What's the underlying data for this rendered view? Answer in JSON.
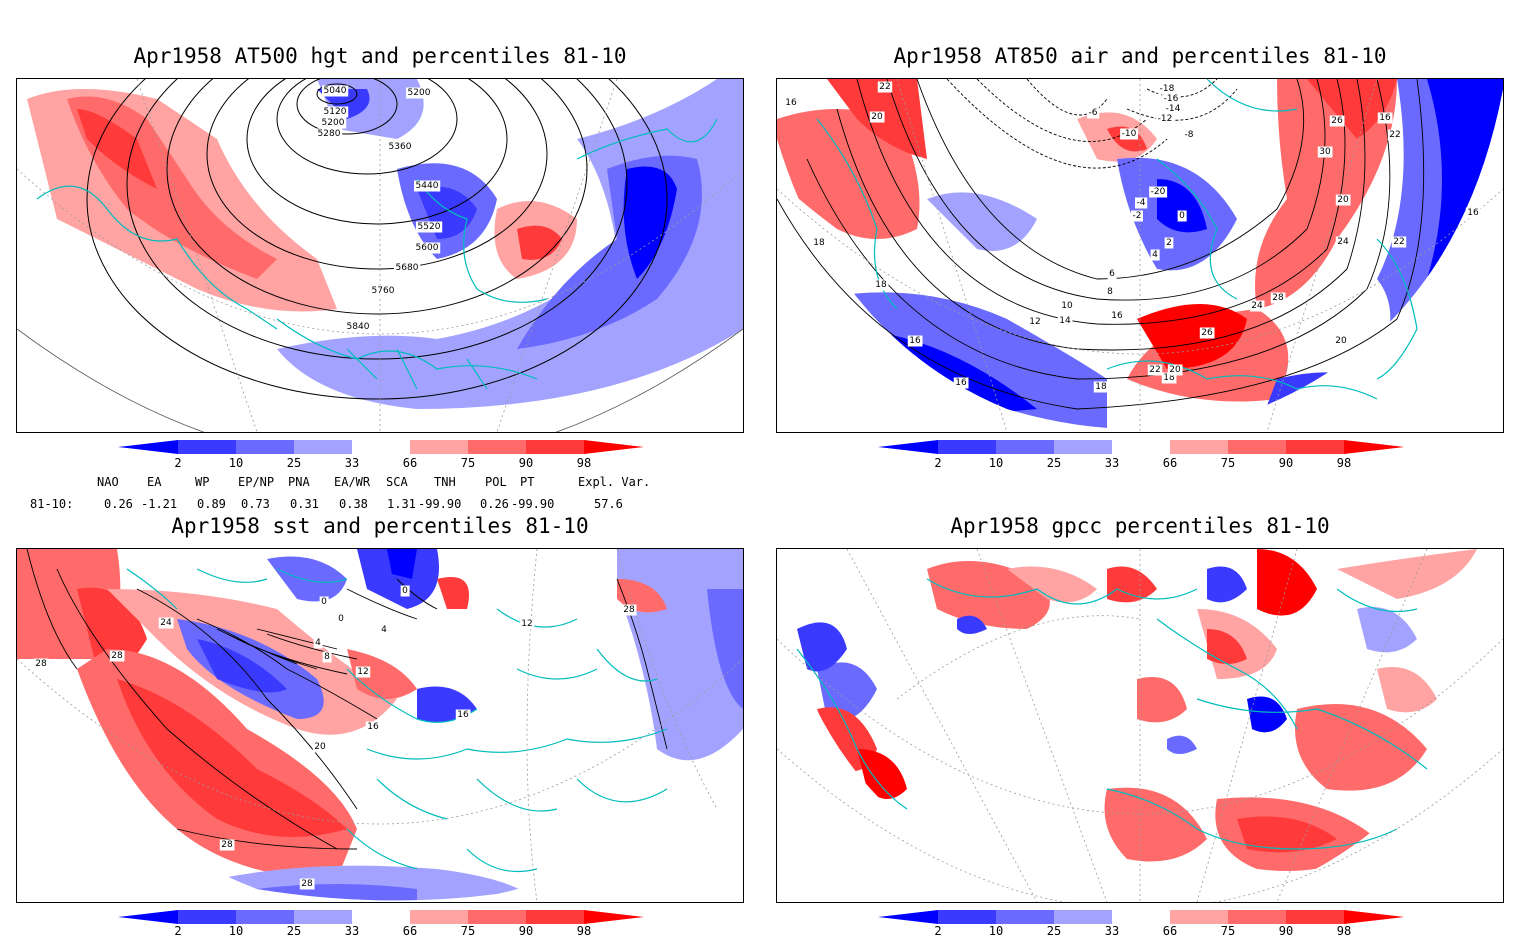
{
  "panels": [
    {
      "title": "Apr1958 AT500 hgt and percentiles 81-10",
      "contour_labels": [
        "5040",
        "5120",
        "5200",
        "5280",
        "5200",
        "5360",
        "5440",
        "5520",
        "5600",
        "5680",
        "5760",
        "5840"
      ]
    },
    {
      "title": "Apr1958 AT850 air and percentiles 81-10",
      "contour_labels": [
        "22",
        "20",
        "18",
        "18",
        "16",
        "16",
        "16",
        "-18",
        "-16",
        "-14",
        "-12",
        "-10",
        "-8",
        "-6",
        "-20",
        "-4",
        "-2",
        "0",
        "2",
        "4",
        "6",
        "8",
        "10",
        "12",
        "14",
        "16",
        "18",
        "20",
        "22",
        "24",
        "26",
        "28",
        "30",
        "26",
        "24",
        "22",
        "20",
        "16",
        "22",
        "20",
        "18",
        "16"
      ]
    },
    {
      "title": "Apr1958 sst and percentiles 81-10",
      "contour_labels": [
        "28",
        "28",
        "24",
        "0",
        "0",
        "0",
        "4",
        "4",
        "8",
        "12",
        "16",
        "16",
        "20",
        "28",
        "28",
        "12",
        "28"
      ]
    },
    {
      "title": "Apr1958 gpcc percentiles 81-10",
      "contour_labels": []
    }
  ],
  "colorbar": {
    "ticks": [
      "2",
      "10",
      "25",
      "33",
      "66",
      "75",
      "90",
      "98"
    ],
    "colors": [
      "#0000ff",
      "#3a3aff",
      "#6a6aff",
      "#a3a3ff",
      "#ffffff",
      "#ffa3a3",
      "#ff6a6a",
      "#ff3a3a",
      "#ff0000"
    ]
  },
  "indices": {
    "headers": [
      "NAO",
      "EA",
      "WP",
      "EP/NP",
      "PNA",
      "EA/WR",
      "SCA",
      "TNH",
      "POL",
      "PT",
      "Expl. Var."
    ],
    "row_label": "81-10:",
    "values": [
      "0.26",
      "-1.21",
      "0.89",
      "0.73",
      "0.31",
      "0.38",
      "1.31",
      "-99.90",
      "0.26",
      "-99.90",
      "57.6"
    ]
  }
}
